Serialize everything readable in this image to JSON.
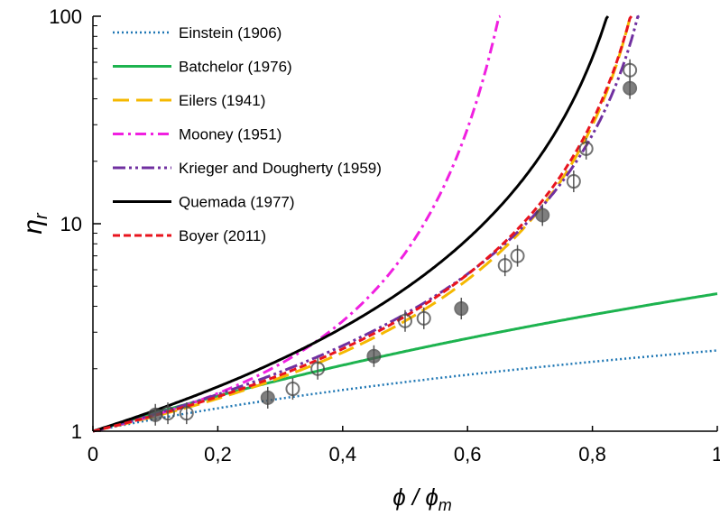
{
  "chart_data": {
    "type": "line",
    "x_label": "ϕ / ϕ",
    "x_label_sub": "m",
    "y_label": "η",
    "y_label_sub": "r",
    "y_scale": "log",
    "xlim": [
      0,
      1
    ],
    "ylim": [
      1,
      100
    ],
    "x_ticks": [
      0,
      0.2,
      0.4,
      0.6,
      0.8,
      1
    ],
    "x_tick_labels": [
      "0",
      "0,2",
      "0,4",
      "0,6",
      "0,8",
      "1"
    ],
    "y_ticks": [
      1,
      10,
      100
    ],
    "y_tick_labels": [
      "1",
      "10",
      "100"
    ],
    "legend_position": "top-left",
    "series": [
      {
        "name": "Einstein (1906)",
        "color": "#1f77b4",
        "dash": "dotted",
        "model": "einstein",
        "phi_m": 0.64
      },
      {
        "name": "Batchelor (1976)",
        "color": "#1db34f",
        "dash": "solid",
        "model": "batchelor",
        "phi_m": 0.64
      },
      {
        "name": "Eilers (1941)",
        "color": "#f5b800",
        "dash": "longdash",
        "model": "eilers"
      },
      {
        "name": "Mooney (1951)",
        "color": "#f020e0",
        "dash": "dashdot",
        "model": "mooney",
        "phi_m": 0.64
      },
      {
        "name": "Krieger and Dougherty (1959)",
        "color": "#7030a0",
        "dash": "dashdotdot",
        "model": "kd"
      },
      {
        "name": "Quemada (1977)",
        "color": "#000000",
        "dash": "solid",
        "model": "quemada"
      },
      {
        "name": "Boyer (2011)",
        "color": "#e8141e",
        "dash": "dashed",
        "model": "boyer"
      }
    ],
    "data_points": [
      {
        "x": 0.1,
        "y": 1.2
      },
      {
        "x": 0.12,
        "y": 1.22
      },
      {
        "x": 0.15,
        "y": 1.22
      },
      {
        "x": 0.28,
        "y": 1.45
      },
      {
        "x": 0.32,
        "y": 1.6
      },
      {
        "x": 0.36,
        "y": 2.0
      },
      {
        "x": 0.45,
        "y": 2.3
      },
      {
        "x": 0.5,
        "y": 3.4
      },
      {
        "x": 0.53,
        "y": 3.5
      },
      {
        "x": 0.59,
        "y": 3.9
      },
      {
        "x": 0.66,
        "y": 6.3
      },
      {
        "x": 0.68,
        "y": 7.0
      },
      {
        "x": 0.72,
        "y": 11.0
      },
      {
        "x": 0.77,
        "y": 16.0
      },
      {
        "x": 0.79,
        "y": 23.0
      },
      {
        "x": 0.86,
        "y": 45.0
      },
      {
        "x": 0.86,
        "y": 55.0
      }
    ]
  }
}
